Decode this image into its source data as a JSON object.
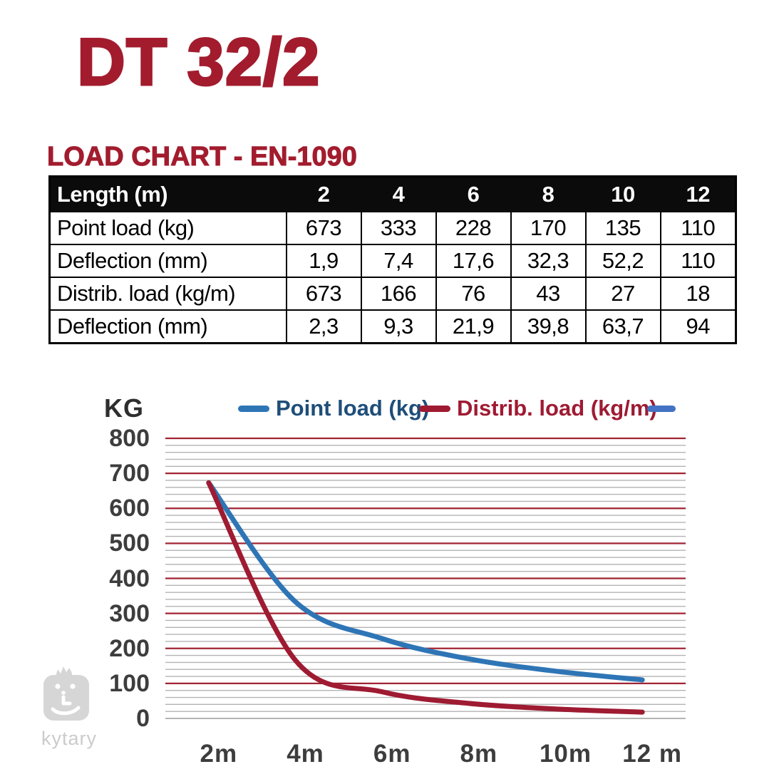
{
  "page": {
    "title": "DT 32/2",
    "subtitle": "LOAD CHART - EN-1090"
  },
  "table": {
    "header": {
      "label": "Length (m)",
      "values": [
        "2",
        "4",
        "6",
        "8",
        "10",
        "12"
      ]
    },
    "rows": [
      {
        "label": "Point load (kg)",
        "values": [
          "673",
          "333",
          "228",
          "170",
          "135",
          "110"
        ]
      },
      {
        "label": "Deflection (mm)",
        "values": [
          "1,9",
          "7,4",
          "17,6",
          "32,3",
          "52,2",
          "110"
        ]
      },
      {
        "label": "Distrib. load (kg/m)",
        "values": [
          "673",
          "166",
          "76",
          "43",
          "27",
          "18"
        ]
      },
      {
        "label": "Deflection (mm)",
        "values": [
          "2,3",
          "9,3",
          "21,9",
          "39,8",
          "63,7",
          "94"
        ]
      }
    ]
  },
  "chart_data": {
    "type": "line",
    "title": "",
    "y_axis_title": "KG",
    "categories": [
      "2m",
      "4m",
      "6m",
      "8m",
      "10m",
      "12 m"
    ],
    "x_values_m": [
      2,
      4,
      6,
      8,
      10,
      12
    ],
    "series": [
      {
        "name": "Point load (kg)",
        "color": "#2e75b6",
        "text_color": "#1f4e79",
        "values": [
          673,
          333,
          228,
          170,
          135,
          110
        ]
      },
      {
        "name": "Distrib. load (kg/m)",
        "color": "#9e1b32",
        "text_color": "#9e1b32",
        "values": [
          673,
          166,
          76,
          43,
          27,
          18
        ]
      }
    ],
    "extra_legend_dash_color": "#4472c4",
    "ylim": [
      0,
      800
    ],
    "y_tick_step": 100,
    "y_minor_step": 20,
    "y_tick_labels": [
      "0",
      "100",
      "200",
      "300",
      "400",
      "500",
      "600",
      "700",
      "800"
    ],
    "grid": true,
    "gridline_major_color": "#a12433",
    "gridline_minor_color": "#b3b3b3",
    "gridline_zero_color": "#9b9b9b",
    "legend_position": "top",
    "line_width": 7
  },
  "watermark": {
    "text": "kytary"
  }
}
